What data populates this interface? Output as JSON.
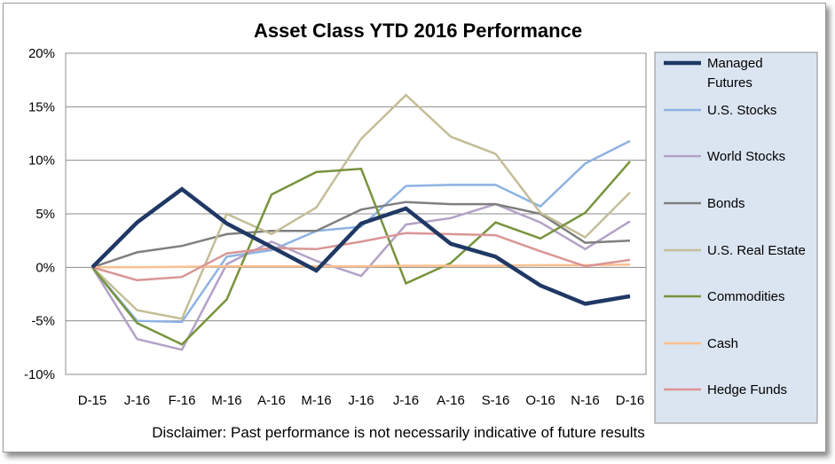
{
  "chart_data": {
    "type": "line",
    "title": "Asset Class YTD 2016 Performance",
    "xlabel": "",
    "ylabel": "",
    "categories": [
      "D-15",
      "J-16",
      "F-16",
      "M-16",
      "A-16",
      "M-16",
      "J-16",
      "J-16",
      "A-16",
      "S-16",
      "O-16",
      "N-16",
      "D-16"
    ],
    "ylim": [
      -10,
      20
    ],
    "yticks": [
      -10,
      -5,
      0,
      5,
      10,
      15,
      20
    ],
    "ytick_labels": [
      "-10%",
      "-5%",
      "0%",
      "5%",
      "10%",
      "15%",
      "20%"
    ],
    "grid": true,
    "legend_position": "right",
    "series": [
      {
        "name": "Managed Futures",
        "color": "#1f3864",
        "values": [
          0,
          4.2,
          7.3,
          4.1,
          1.9,
          -0.3,
          4.1,
          5.5,
          2.2,
          1.0,
          -1.7,
          -3.4,
          -2.7
        ]
      },
      {
        "name": "U.S. Stocks",
        "color": "#8db3e2",
        "values": [
          0,
          -5.0,
          -5.1,
          1.0,
          1.6,
          3.4,
          3.8,
          7.6,
          7.7,
          7.7,
          5.7,
          9.7,
          11.8
        ]
      },
      {
        "name": "World Stocks",
        "color": "#b3a2c7",
        "values": [
          0,
          -6.7,
          -7.7,
          0.3,
          2.4,
          0.6,
          -0.8,
          4.0,
          4.6,
          5.9,
          4.2,
          1.7,
          4.3
        ]
      },
      {
        "name": "Bonds",
        "color": "#7f7f7f",
        "values": [
          0,
          1.4,
          2.0,
          3.1,
          3.4,
          3.4,
          5.4,
          6.1,
          5.9,
          5.9,
          5.0,
          2.3,
          2.5
        ]
      },
      {
        "name": "U.S. Real Estate",
        "color": "#c4bd97",
        "values": [
          0,
          -4.0,
          -4.8,
          5.0,
          3.1,
          5.6,
          12.0,
          16.1,
          12.2,
          10.6,
          5.1,
          2.8,
          7.0
        ]
      },
      {
        "name": "Commodities",
        "color": "#77933c",
        "values": [
          0,
          -5.2,
          -7.2,
          -3.0,
          6.8,
          8.9,
          9.2,
          -1.5,
          0.4,
          4.2,
          2.7,
          5.1,
          9.9
        ]
      },
      {
        "name": "Cash",
        "color": "#fac090",
        "values": [
          0,
          0.0,
          0.05,
          0.1,
          0.1,
          0.1,
          0.1,
          0.15,
          0.15,
          0.15,
          0.2,
          0.2,
          0.25
        ]
      },
      {
        "name": "Hedge Funds",
        "color": "#d99694",
        "values": [
          0,
          -1.2,
          -0.9,
          1.3,
          1.8,
          1.7,
          2.4,
          3.2,
          3.1,
          3.0,
          1.5,
          0.1,
          0.7
        ]
      }
    ],
    "annotations": [
      "Disclaimer: Past performance is not necessarily indicative of future results"
    ]
  }
}
